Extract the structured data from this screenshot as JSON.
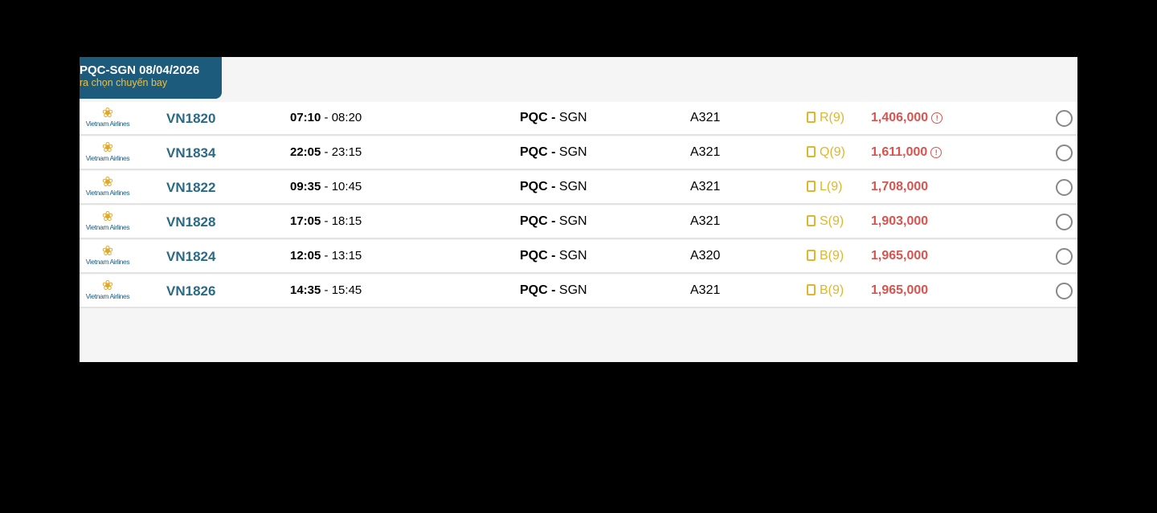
{
  "header": {
    "title": "PQC-SGN 08/04/2026",
    "subtitle": "ra chọn chuyến bay"
  },
  "airline": "Vietnam Airlines",
  "flights": [
    {
      "flight": "VN1820",
      "dep": "07:10",
      "arr": "08:20",
      "from": "PQC",
      "to": "SGN",
      "aircraft": "A321",
      "fare_class": "R(9)",
      "price": "1,406,000",
      "warning": true
    },
    {
      "flight": "VN1834",
      "dep": "22:05",
      "arr": "23:15",
      "from": "PQC",
      "to": "SGN",
      "aircraft": "A321",
      "fare_class": "Q(9)",
      "price": "1,611,000",
      "warning": true
    },
    {
      "flight": "VN1822",
      "dep": "09:35",
      "arr": "10:45",
      "from": "PQC",
      "to": "SGN",
      "aircraft": "A321",
      "fare_class": "L(9)",
      "price": "1,708,000",
      "warning": false
    },
    {
      "flight": "VN1828",
      "dep": "17:05",
      "arr": "18:15",
      "from": "PQC",
      "to": "SGN",
      "aircraft": "A321",
      "fare_class": "S(9)",
      "price": "1,903,000",
      "warning": false
    },
    {
      "flight": "VN1824",
      "dep": "12:05",
      "arr": "13:15",
      "from": "PQC",
      "to": "SGN",
      "aircraft": "A320",
      "fare_class": "B(9)",
      "price": "1,965,000",
      "warning": false
    },
    {
      "flight": "VN1826",
      "dep": "14:35",
      "arr": "15:45",
      "from": "PQC",
      "to": "SGN",
      "aircraft": "A321",
      "fare_class": "B(9)",
      "price": "1,965,000",
      "warning": false
    }
  ],
  "colors": {
    "header_bg": "#1d5b7d",
    "price": "#d9534f",
    "fare_class": "#e3b52b"
  }
}
